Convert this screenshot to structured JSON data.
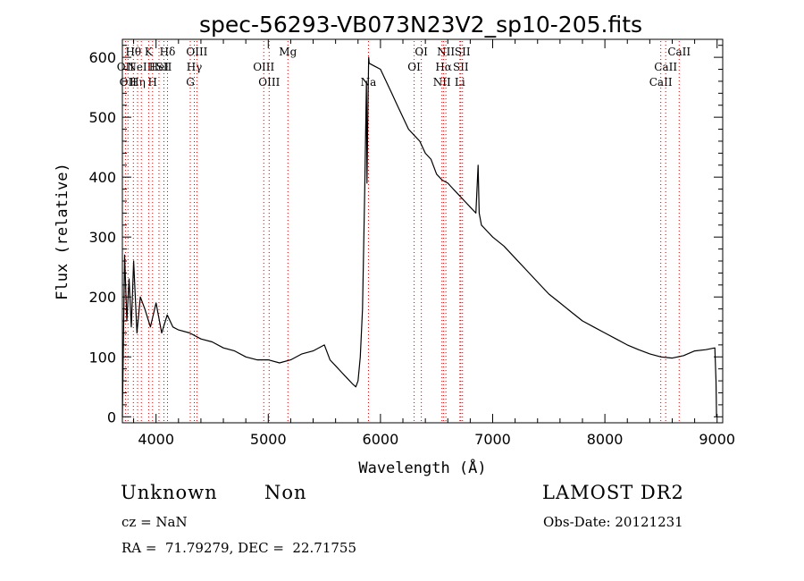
{
  "chart_data": {
    "type": "line",
    "title": "spec-56293-VB073N23V2_sp10-205.fits",
    "xlabel": "Wavelength (Å)",
    "ylabel": "Flux (relative)",
    "xlim": [
      3700,
      9050
    ],
    "ylim": [
      -10,
      630
    ],
    "xticks": [
      4000,
      5000,
      6000,
      7000,
      8000,
      9000
    ],
    "yticks": [
      0,
      100,
      200,
      300,
      400,
      500,
      600
    ],
    "grid": false,
    "line_color": "#000000",
    "line_marker_color": "#cc0000",
    "series": [
      {
        "x": [
          3700,
          3720,
          3740,
          3760,
          3780,
          3800,
          3830,
          3860,
          3900,
          3950,
          4000,
          4050,
          4100,
          4150,
          4200,
          4300,
          4400,
          4500,
          4600,
          4700,
          4800,
          4900,
          5000,
          5100,
          5200,
          5300,
          5400,
          5500,
          5550,
          5600,
          5650,
          5700,
          5750,
          5780,
          5800,
          5820,
          5840,
          5860,
          5875,
          5880,
          5890,
          5895,
          5900,
          5950,
          6000,
          6050,
          6100,
          6150,
          6200,
          6250,
          6300,
          6350,
          6400,
          6450,
          6500,
          6550,
          6600,
          6650,
          6700,
          6750,
          6800,
          6850,
          6870,
          6880,
          6900,
          6950,
          7000,
          7100,
          7200,
          7300,
          7400,
          7500,
          7600,
          7700,
          7800,
          7900,
          8000,
          8100,
          8200,
          8300,
          8400,
          8500,
          8600,
          8700,
          8800,
          8900,
          8980,
          8990,
          8995
        ],
        "values": [
          0,
          270,
          160,
          230,
          150,
          260,
          140,
          200,
          180,
          150,
          190,
          140,
          170,
          150,
          145,
          140,
          130,
          125,
          115,
          110,
          100,
          95,
          95,
          90,
          95,
          105,
          110,
          120,
          95,
          85,
          75,
          65,
          55,
          50,
          60,
          100,
          180,
          380,
          560,
          390,
          540,
          600,
          590,
          585,
          580,
          560,
          540,
          520,
          500,
          480,
          470,
          460,
          440,
          430,
          405,
          395,
          390,
          380,
          370,
          360,
          350,
          340,
          420,
          340,
          320,
          310,
          300,
          285,
          265,
          245,
          225,
          205,
          190,
          175,
          160,
          150,
          140,
          130,
          120,
          112,
          105,
          100,
          98,
          102,
          110,
          112,
          115,
          60,
          0
        ]
      }
    ],
    "line_markers": [
      {
        "x": 3727,
        "labels": [
          "OII"
        ],
        "rows": [
          1
        ]
      },
      {
        "x": 3750,
        "labels": [
          "OII"
        ],
        "rows": [
          2
        ]
      },
      {
        "x": 3798,
        "labels": [
          "Hθ"
        ],
        "rows": [
          0
        ]
      },
      {
        "x": 3835,
        "labels": [
          "Hη"
        ],
        "rows": [
          2
        ]
      },
      {
        "x": 3869,
        "labels": [
          "NeIII"
        ],
        "rows": [
          1
        ]
      },
      {
        "x": 3934,
        "labels": [
          "K"
        ],
        "rows": [
          0
        ]
      },
      {
        "x": 3969,
        "labels": [
          "H"
        ],
        "rows": [
          2
        ]
      },
      {
        "x": 4026,
        "labels": [
          "HeI"
        ],
        "rows": [
          1
        ]
      },
      {
        "x": 4070,
        "labels": [
          "SII"
        ],
        "rows": [
          1
        ]
      },
      {
        "x": 4102,
        "labels": [
          "Hδ"
        ],
        "rows": [
          0
        ]
      },
      {
        "x": 4305,
        "labels": [
          "G"
        ],
        "rows": [
          2
        ]
      },
      {
        "x": 4341,
        "labels": [
          "Hγ"
        ],
        "rows": [
          1
        ]
      },
      {
        "x": 4364,
        "labels": [
          "OIII"
        ],
        "rows": [
          0
        ]
      },
      {
        "x": 4960,
        "labels": [
          "OIII"
        ],
        "rows": [
          1
        ]
      },
      {
        "x": 5008,
        "labels": [
          "OIII"
        ],
        "rows": [
          2
        ]
      },
      {
        "x": 5175,
        "labels": [
          "Mg"
        ],
        "rows": [
          0
        ]
      },
      {
        "x": 5893,
        "labels": [
          "Na"
        ],
        "rows": [
          2
        ]
      },
      {
        "x": 6300,
        "labels": [
          "OI"
        ],
        "rows": [
          1
        ]
      },
      {
        "x": 6364,
        "labels": [
          "OI"
        ],
        "rows": [
          0
        ]
      },
      {
        "x": 6548,
        "labels": [
          "NII"
        ],
        "rows": [
          2
        ]
      },
      {
        "x": 6563,
        "labels": [
          "Hα"
        ],
        "rows": [
          1
        ]
      },
      {
        "x": 6583,
        "labels": [
          "NII"
        ],
        "rows": [
          0
        ]
      },
      {
        "x": 6708,
        "labels": [
          "Li"
        ],
        "rows": [
          2
        ]
      },
      {
        "x": 6716,
        "labels": [
          "SII"
        ],
        "rows": [
          1
        ]
      },
      {
        "x": 6731,
        "labels": [
          "SII"
        ],
        "rows": [
          0
        ]
      },
      {
        "x": 8498,
        "labels": [
          "CaII"
        ],
        "rows": [
          2
        ]
      },
      {
        "x": 8542,
        "labels": [
          "CaII"
        ],
        "rows": [
          1
        ]
      },
      {
        "x": 8662,
        "labels": [
          "CaII"
        ],
        "rows": [
          0
        ]
      }
    ]
  },
  "info": {
    "class": "Unknown",
    "subclass": "Non",
    "survey": "LAMOST DR2",
    "cz": "cz = NaN",
    "obs_date": "Obs-Date: 20121231",
    "coords": "RA =  71.79279, DEC =  22.71755"
  }
}
